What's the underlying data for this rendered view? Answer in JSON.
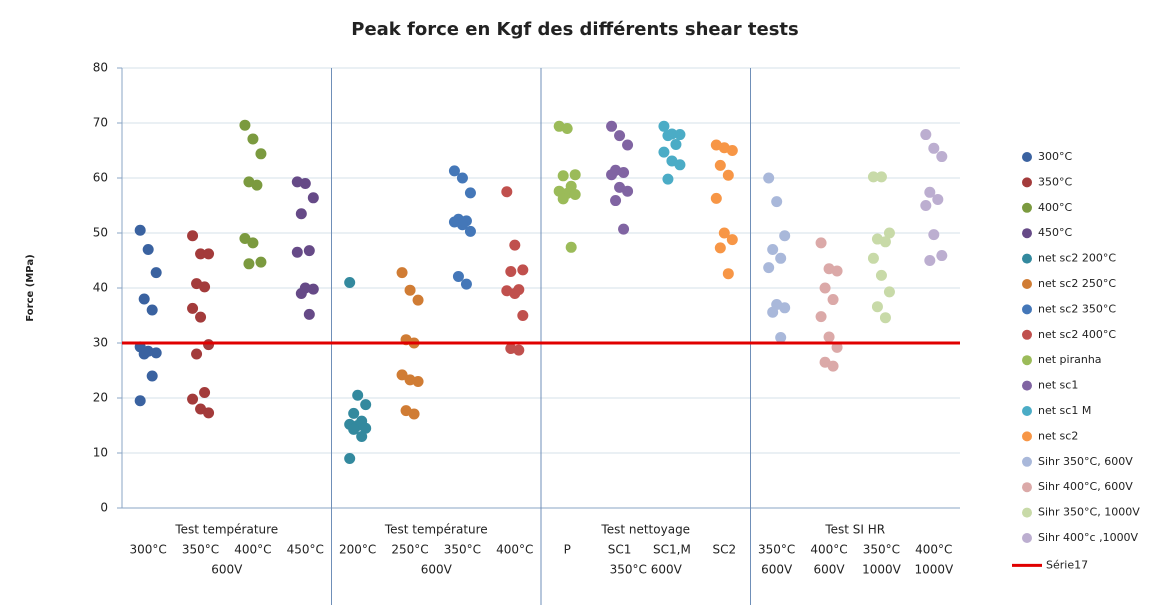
{
  "chart_data": {
    "type": "scatter",
    "title": "Peak force en Kgf des différents shear tests",
    "y_label": "Force (MPa)",
    "ylim": [
      0,
      80
    ],
    "yticks": [
      0,
      10,
      20,
      30,
      40,
      50,
      60,
      70,
      80
    ],
    "grid": true,
    "groups": [
      {
        "label": "Test température",
        "categories": [
          [
            "300°C"
          ],
          [
            "350°C"
          ],
          [
            "400°C"
          ],
          [
            "450°C"
          ]
        ],
        "sublabel": "600V"
      },
      {
        "label": "Test température",
        "categories": [
          [
            "200°C"
          ],
          [
            "250°C"
          ],
          [
            "350°C"
          ],
          [
            "400°C"
          ]
        ],
        "sublabel": "600V"
      },
      {
        "label": "Test nettoyage",
        "categories": [
          [
            "P"
          ],
          [
            "SC1"
          ],
          [
            "SC1,M"
          ],
          [
            "SC2"
          ]
        ],
        "sublabel": "350°C 600V"
      },
      {
        "label": "Test SI HR",
        "categories": [
          [
            "350°C",
            "600V"
          ],
          [
            "400°C",
            "600V"
          ],
          [
            "350°C",
            "1000V"
          ],
          [
            "400°C",
            "1000V"
          ]
        ]
      }
    ],
    "series": [
      {
        "name": "300°C",
        "color": "#3a62a0",
        "values": [
          50.5,
          47,
          42.8,
          38,
          36,
          29.3,
          28.5,
          28.2,
          28,
          24,
          19.5
        ]
      },
      {
        "name": "350°C",
        "color": "#a33b3b",
        "values": [
          49.5,
          46.2,
          46.2,
          40.8,
          40.2,
          36.3,
          34.7,
          29.7,
          28,
          21,
          19.8,
          18,
          17.3
        ]
      },
      {
        "name": "400°C",
        "color": "#7b9a3f",
        "values": [
          69.6,
          67.1,
          64.4,
          59.3,
          58.7,
          49,
          48.2,
          44.7,
          44.4
        ]
      },
      {
        "name": "450°C",
        "color": "#664a87",
        "values": [
          59.3,
          59,
          56.4,
          53.5,
          46.8,
          46.5,
          40,
          39.8,
          39,
          35.2
        ]
      },
      {
        "name": "net sc2 200°C",
        "color": "#33899e",
        "values": [
          41,
          20.5,
          18.8,
          17.2,
          15.8,
          15.2,
          15,
          14.5,
          14.3,
          13,
          9
        ]
      },
      {
        "name": "net sc2 250°C",
        "color": "#d07c34",
        "values": [
          42.8,
          39.6,
          37.8,
          30.6,
          30,
          24.2,
          23.3,
          23,
          17.7,
          17.1
        ]
      },
      {
        "name": "net sc2 350°C",
        "color": "#4477b8",
        "values": [
          61.3,
          60,
          57.3,
          52.5,
          52.2,
          52,
          51.5,
          50.3,
          42.1,
          40.7
        ]
      },
      {
        "name": "net sc2 400°C",
        "color": "#c0504d",
        "values": [
          57.5,
          47.8,
          43.3,
          43,
          39.7,
          39.5,
          39,
          35,
          29,
          28.7
        ]
      },
      {
        "name": "net piranha",
        "color": "#9bbb59",
        "values": [
          69.4,
          69,
          60.6,
          60.4,
          58.5,
          57.6,
          57.2,
          57,
          56.2,
          47.4
        ]
      },
      {
        "name": "net sc1",
        "color": "#8064a2",
        "values": [
          69.4,
          67.7,
          66,
          61.4,
          61,
          60.6,
          58.3,
          57.6,
          55.9,
          50.7
        ]
      },
      {
        "name": "net sc1 M",
        "color": "#4bacc6",
        "values": [
          69.4,
          68,
          67.9,
          67.7,
          66.1,
          64.7,
          63.1,
          62.4,
          59.8
        ]
      },
      {
        "name": "net sc2",
        "color": "#f79646",
        "values": [
          66,
          65.5,
          65,
          62.3,
          60.5,
          56.3,
          50,
          48.8,
          47.3,
          42.6
        ]
      },
      {
        "name": "Sihr 350°C, 600V",
        "color": "#a9b8da",
        "values": [
          60,
          55.7,
          49.5,
          47,
          45.4,
          43.7,
          37,
          36.4,
          35.6,
          31
        ]
      },
      {
        "name": "Sihr 400°C, 600V",
        "color": "#dba9a8",
        "values": [
          48.2,
          43.5,
          43.1,
          40,
          37.9,
          34.8,
          31.1,
          29.2,
          26.5,
          25.8
        ]
      },
      {
        "name": "Sihr 350°C, 1000V",
        "color": "#c8daa8",
        "values": [
          60.2,
          60.2,
          50,
          48.9,
          48.4,
          45.4,
          42.3,
          39.3,
          36.6,
          34.6
        ]
      },
      {
        "name": "Sihr 400°c ,1000V",
        "color": "#bcaed0",
        "values": [
          67.9,
          65.4,
          63.9,
          57.4,
          56.1,
          55,
          49.7,
          45.9,
          45
        ]
      }
    ],
    "reference_line": {
      "name": "Série17",
      "value": 30,
      "color": "#e00000"
    }
  }
}
